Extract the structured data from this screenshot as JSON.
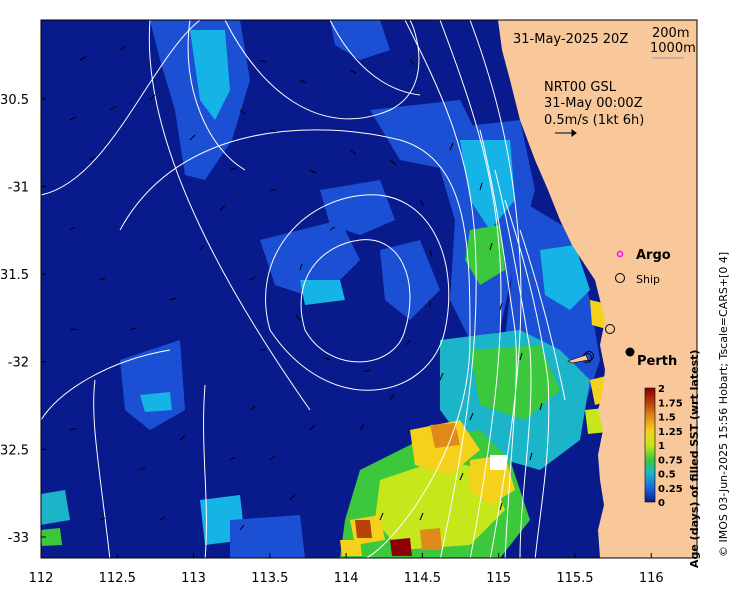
{
  "map": {
    "date_label": "31-May-2025 20Z",
    "isobath_labels": [
      "200m",
      "1000m"
    ],
    "current_product": "NRT00 GSL",
    "current_time": "31-May 00:00Z",
    "current_scale": "0.5m/s (1kt 6h)",
    "legend": {
      "argo": "Argo",
      "ship": "Ship"
    },
    "city": "Perth",
    "colorbar": {
      "title": "Age (days) of filled SST (wrt latest)",
      "ticks": [
        "2",
        "1.75",
        "1.5",
        "1.25",
        "1",
        "0.75",
        "0.5",
        "0.25",
        "0"
      ],
      "colors": [
        "#8b0000",
        "#b8400a",
        "#e08a1c",
        "#f4d21c",
        "#c8e61c",
        "#3cc83c",
        "#1cb4c8",
        "#1c64dc",
        "#0a1e8c"
      ]
    },
    "credit": "© IMOS 03-Jun-2025 15:56 Hobart; Tscale=CARS+[0 4]",
    "x_ticks": [
      "112",
      "112.5",
      "113",
      "113.5",
      "114",
      "114.5",
      "115",
      "115.5",
      "116"
    ],
    "y_ticks": [
      "-30.5",
      "-31",
      "-31.5",
      "-32",
      "-32.5",
      "-33"
    ],
    "colors": {
      "ocean": "#081a8c",
      "land": "#f9c89a",
      "patch_blue": "#1c50d4",
      "patch_cyan": "#16b4e6"
    }
  },
  "chart_data": {
    "type": "heatmap",
    "x_range": [
      112,
      116.3
    ],
    "y_range": [
      -33.12,
      -30.05
    ],
    "x_ticks": [
      112,
      112.5,
      113,
      113.5,
      114,
      114.5,
      115,
      115.5,
      116
    ],
    "y_ticks": [
      -30.5,
      -31,
      -31.5,
      -32,
      -32.5,
      -33
    ],
    "value_range": [
      0,
      2
    ],
    "markers": [
      {
        "type": "city",
        "label": "Perth",
        "lon": 115.86,
        "lat": -31.95
      }
    ]
  }
}
